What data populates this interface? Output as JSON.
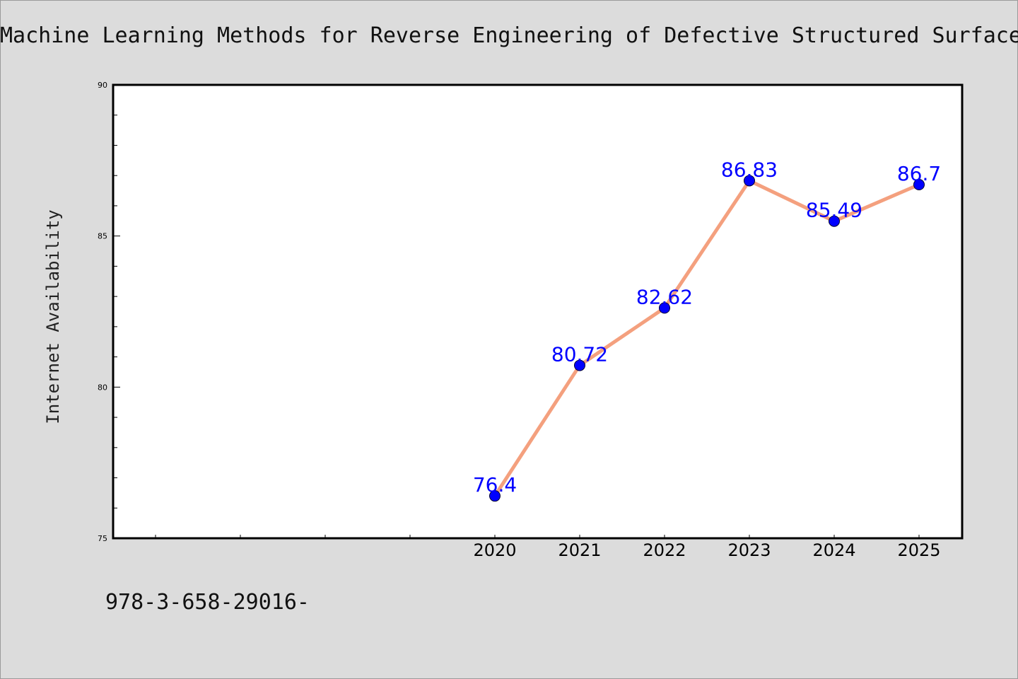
{
  "chart_data": {
    "type": "line",
    "title": "Machine Learning Methods for Reverse Engineering of Defective Structured Surface",
    "xlabel": "",
    "ylabel": "Internet Availability",
    "x": [
      "2020",
      "2021",
      "2022",
      "2023",
      "2024",
      "2025"
    ],
    "series": [
      {
        "values": [
          76.4,
          80.72,
          82.62,
          86.83,
          85.49,
          86.7
        ]
      }
    ],
    "data_labels": [
      "76.4",
      "80.72",
      "82.62",
      "86.83",
      "85.49",
      "86.7"
    ],
    "ylim": [
      75,
      90
    ],
    "yticks": [
      "75",
      "80",
      "85",
      "90"
    ],
    "grid": false,
    "legend": "none",
    "colors": {
      "line": "#f4a07e",
      "marker": "#0000ff",
      "label": "#0000ff",
      "plot_bg": "#ffffff",
      "page_bg": "#dcdcdc"
    }
  },
  "footer": {
    "isbn_text": "978-3-658-29016-"
  }
}
